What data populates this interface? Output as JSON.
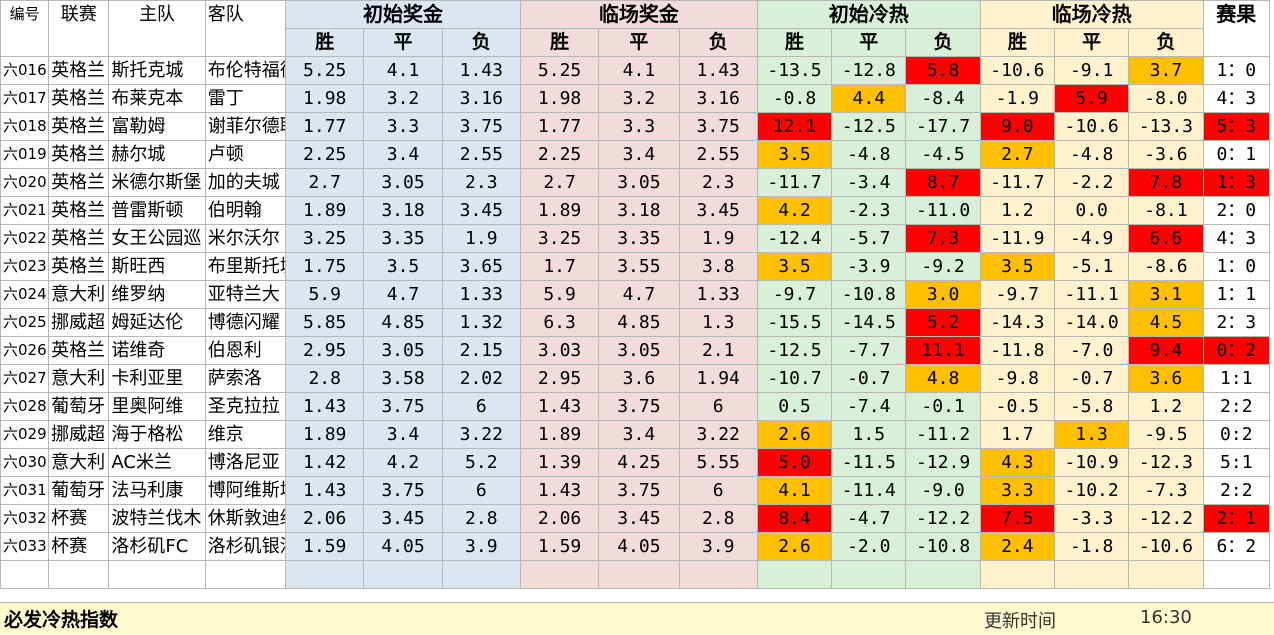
{
  "headers": {
    "id": "编号",
    "league": "联赛",
    "home": "主队",
    "away": "客队",
    "init_prize": "初始奖金",
    "live_prize": "临场奖金",
    "init_heat": "初始冷热",
    "live_heat": "临场冷热",
    "result": "赛果",
    "win": "胜",
    "draw": "平",
    "lose": "负"
  },
  "rows": [
    {
      "id": "六016",
      "league": "英格兰",
      "home": "斯托克城",
      "away": "布伦特福德",
      "ip": [
        "5.25",
        "4.1",
        "1.43"
      ],
      "lp": [
        "5.25",
        "4.1",
        "1.43"
      ],
      "ih": [
        "-13.5",
        "-12.8",
        "5.8"
      ],
      "lh": [
        "-10.6",
        "-9.1",
        "3.7"
      ],
      "res": "1：0"
    },
    {
      "id": "六017",
      "league": "英格兰",
      "home": "布莱克本",
      "away": "雷丁",
      "ip": [
        "1.98",
        "3.2",
        "3.16"
      ],
      "lp": [
        "1.98",
        "3.2",
        "3.16"
      ],
      "ih": [
        "-0.8",
        "4.4",
        "-8.4"
      ],
      "lh": [
        "-1.9",
        "5.9",
        "-8.0"
      ],
      "res": "4：3"
    },
    {
      "id": "六018",
      "league": "英格兰",
      "home": "富勒姆",
      "away": "谢菲尔德联",
      "ip": [
        "1.77",
        "3.3",
        "3.75"
      ],
      "lp": [
        "1.77",
        "3.3",
        "3.75"
      ],
      "ih": [
        "12.1",
        "-12.5",
        "-17.7"
      ],
      "lh": [
        "9.0",
        "-10.6",
        "-13.3"
      ],
      "res": "5：3"
    },
    {
      "id": "六019",
      "league": "英格兰",
      "home": "赫尔城",
      "away": "卢顿",
      "ip": [
        "2.25",
        "3.4",
        "2.55"
      ],
      "lp": [
        "2.25",
        "3.4",
        "2.55"
      ],
      "ih": [
        "3.5",
        "-4.8",
        "-4.5"
      ],
      "lh": [
        "2.7",
        "-4.8",
        "-3.6"
      ],
      "res": "0：1"
    },
    {
      "id": "六020",
      "league": "英格兰",
      "home": "米德尔斯堡",
      "away": "加的夫城",
      "ip": [
        "2.7",
        "3.05",
        "2.3"
      ],
      "lp": [
        "2.7",
        "3.05",
        "2.3"
      ],
      "ih": [
        "-11.7",
        "-3.4",
        "8.7"
      ],
      "lh": [
        "-11.7",
        "-2.2",
        "7.8"
      ],
      "res": "1：3"
    },
    {
      "id": "六021",
      "league": "英格兰",
      "home": "普雷斯顿",
      "away": "伯明翰",
      "ip": [
        "1.89",
        "3.18",
        "3.45"
      ],
      "lp": [
        "1.89",
        "3.18",
        "3.45"
      ],
      "ih": [
        "4.2",
        "-2.3",
        "-11.0"
      ],
      "lh": [
        "1.2",
        "0.0",
        "-8.1"
      ],
      "res": "2：0"
    },
    {
      "id": "六022",
      "league": "英格兰",
      "home": "女王公园巡",
      "away": "米尔沃尔",
      "ip": [
        "3.25",
        "3.35",
        "1.9"
      ],
      "lp": [
        "3.25",
        "3.35",
        "1.9"
      ],
      "ih": [
        "-12.4",
        "-5.7",
        "7.3"
      ],
      "lh": [
        "-11.9",
        "-4.9",
        "6.6"
      ],
      "res": "4：3"
    },
    {
      "id": "六023",
      "league": "英格兰",
      "home": "斯旺西",
      "away": "布里斯托城",
      "ip": [
        "1.75",
        "3.5",
        "3.65"
      ],
      "lp": [
        "1.7",
        "3.55",
        "3.8"
      ],
      "ih": [
        "3.5",
        "-3.9",
        "-9.2"
      ],
      "lh": [
        "3.5",
        "-5.1",
        "-8.6"
      ],
      "res": "1：0"
    },
    {
      "id": "六024",
      "league": "意大利",
      "home": "维罗纳",
      "away": "亚特兰大",
      "ip": [
        "5.9",
        "4.7",
        "1.33"
      ],
      "lp": [
        "5.9",
        "4.7",
        "1.33"
      ],
      "ih": [
        "-9.7",
        "-10.8",
        "3.0"
      ],
      "lh": [
        "-9.7",
        "-11.1",
        "3.1"
      ],
      "res": "1：1"
    },
    {
      "id": "六025",
      "league": "挪威超",
      "home": "姆延达伦",
      "away": "博德闪耀",
      "ip": [
        "5.85",
        "4.85",
        "1.32"
      ],
      "lp": [
        "6.3",
        "4.85",
        "1.3"
      ],
      "ih": [
        "-15.5",
        "-14.5",
        "5.2"
      ],
      "lh": [
        "-14.3",
        "-14.0",
        "4.5"
      ],
      "res": "2：3"
    },
    {
      "id": "六026",
      "league": "英格兰",
      "home": "诺维奇",
      "away": "伯恩利",
      "ip": [
        "2.95",
        "3.05",
        "2.15"
      ],
      "lp": [
        "3.03",
        "3.05",
        "2.1"
      ],
      "ih": [
        "-12.5",
        "-7.7",
        "11.1"
      ],
      "lh": [
        "-11.8",
        "-7.0",
        "9.4"
      ],
      "res": "0：2"
    },
    {
      "id": "六027",
      "league": "意大利",
      "home": "卡利亚里",
      "away": "萨索洛",
      "ip": [
        "2.8",
        "3.58",
        "2.02"
      ],
      "lp": [
        "2.95",
        "3.6",
        "1.94"
      ],
      "ih": [
        "-10.7",
        "-0.7",
        "4.8"
      ],
      "lh": [
        "-9.8",
        "-0.7",
        "3.6"
      ],
      "res": "1:1"
    },
    {
      "id": "六028",
      "league": "葡萄牙",
      "home": "里奥阿维",
      "away": "圣克拉拉",
      "ip": [
        "1.43",
        "3.75",
        "6"
      ],
      "lp": [
        "1.43",
        "3.75",
        "6"
      ],
      "ih": [
        "0.5",
        "-7.4",
        "-0.1"
      ],
      "lh": [
        "-0.5",
        "-5.8",
        "1.2"
      ],
      "res": "2:2"
    },
    {
      "id": "六029",
      "league": "挪威超",
      "home": "海于格松",
      "away": "维京",
      "ip": [
        "1.89",
        "3.4",
        "3.22"
      ],
      "lp": [
        "1.89",
        "3.4",
        "3.22"
      ],
      "ih": [
        "2.6",
        "1.5",
        "-11.2"
      ],
      "lh": [
        "1.7",
        "1.3",
        "-9.5"
      ],
      "res": "0:2"
    },
    {
      "id": "六030",
      "league": "意大利",
      "home": "AC米兰",
      "away": "博洛尼亚",
      "ip": [
        "1.42",
        "4.2",
        "5.2"
      ],
      "lp": [
        "1.39",
        "4.25",
        "5.55"
      ],
      "ih": [
        "5.0",
        "-11.5",
        "-12.9"
      ],
      "lh": [
        "4.3",
        "-10.9",
        "-12.3"
      ],
      "res": "5:1"
    },
    {
      "id": "六031",
      "league": "葡萄牙",
      "home": "法马利康",
      "away": "博阿维斯塔",
      "ip": [
        "1.43",
        "3.75",
        "6"
      ],
      "lp": [
        "1.43",
        "3.75",
        "6"
      ],
      "ih": [
        "4.1",
        "-11.4",
        "-9.0"
      ],
      "lh": [
        "3.3",
        "-10.2",
        "-7.3"
      ],
      "res": "2:2"
    },
    {
      "id": "六032",
      "league": "杯赛",
      "home": "波特兰伐木",
      "away": "休斯敦迪纳摩",
      "ip": [
        "2.06",
        "3.45",
        "2.8"
      ],
      "lp": [
        "2.06",
        "3.45",
        "2.8"
      ],
      "ih": [
        "8.4",
        "-4.7",
        "-12.2"
      ],
      "lh": [
        "7.5",
        "-3.3",
        "-12.2"
      ],
      "res": "2：1"
    },
    {
      "id": "六033",
      "league": "杯赛",
      "home": "洛杉矶FC",
      "away": "洛杉矶银河",
      "ip": [
        "1.59",
        "4.05",
        "3.9"
      ],
      "lp": [
        "1.59",
        "4.05",
        "3.9"
      ],
      "ih": [
        "2.6",
        "-2.0",
        "-10.8"
      ],
      "lh": [
        "2.4",
        "-1.8",
        "-10.6"
      ],
      "res": "6：2"
    }
  ],
  "highlights": {
    "init_heat": [
      [
        "",
        "",
        "red"
      ],
      [
        "",
        "org",
        ""
      ],
      [
        "red",
        "",
        ""
      ],
      [
        "org",
        "",
        ""
      ],
      [
        "",
        "",
        "red"
      ],
      [
        "org",
        "",
        ""
      ],
      [
        "",
        "",
        "red"
      ],
      [
        "org",
        "",
        ""
      ],
      [
        "",
        "",
        "org"
      ],
      [
        "",
        "",
        "red"
      ],
      [
        "",
        "",
        "red"
      ],
      [
        "",
        "",
        "org"
      ],
      [
        "",
        "",
        ""
      ],
      [
        "org",
        "",
        ""
      ],
      [
        "red",
        "",
        ""
      ],
      [
        "org",
        "",
        ""
      ],
      [
        "red",
        "",
        ""
      ],
      [
        "org",
        "",
        ""
      ]
    ],
    "live_heat": [
      [
        "",
        "",
        "org"
      ],
      [
        "",
        "red",
        ""
      ],
      [
        "red",
        "",
        ""
      ],
      [
        "org",
        "",
        ""
      ],
      [
        "",
        "",
        "red"
      ],
      [
        "",
        "",
        ""
      ],
      [
        "",
        "",
        "red"
      ],
      [
        "org",
        "",
        ""
      ],
      [
        "",
        "",
        "org"
      ],
      [
        "",
        "",
        "org"
      ],
      [
        "",
        "",
        "red"
      ],
      [
        "",
        "",
        "org"
      ],
      [
        "",
        "",
        ""
      ],
      [
        "",
        "org",
        ""
      ],
      [
        "org",
        "",
        ""
      ],
      [
        "org",
        "",
        ""
      ],
      [
        "red",
        "",
        ""
      ],
      [
        "org",
        "",
        ""
      ]
    ],
    "result": [
      "",
      "",
      "red",
      "",
      "red",
      "",
      "",
      "",
      "",
      "",
      "red",
      "",
      "",
      "",
      "",
      "",
      "red",
      ""
    ]
  },
  "colors": {
    "red": "#ff0000",
    "orange": "#ffc000",
    "blue": "#dce6f1",
    "pink": "#f2dcdb",
    "green": "#d8f0d8",
    "yellow": "#fff2cc"
  },
  "footer": {
    "title": "必发冷热指数",
    "update_label": "更新时间",
    "update_time": "16:30"
  }
}
